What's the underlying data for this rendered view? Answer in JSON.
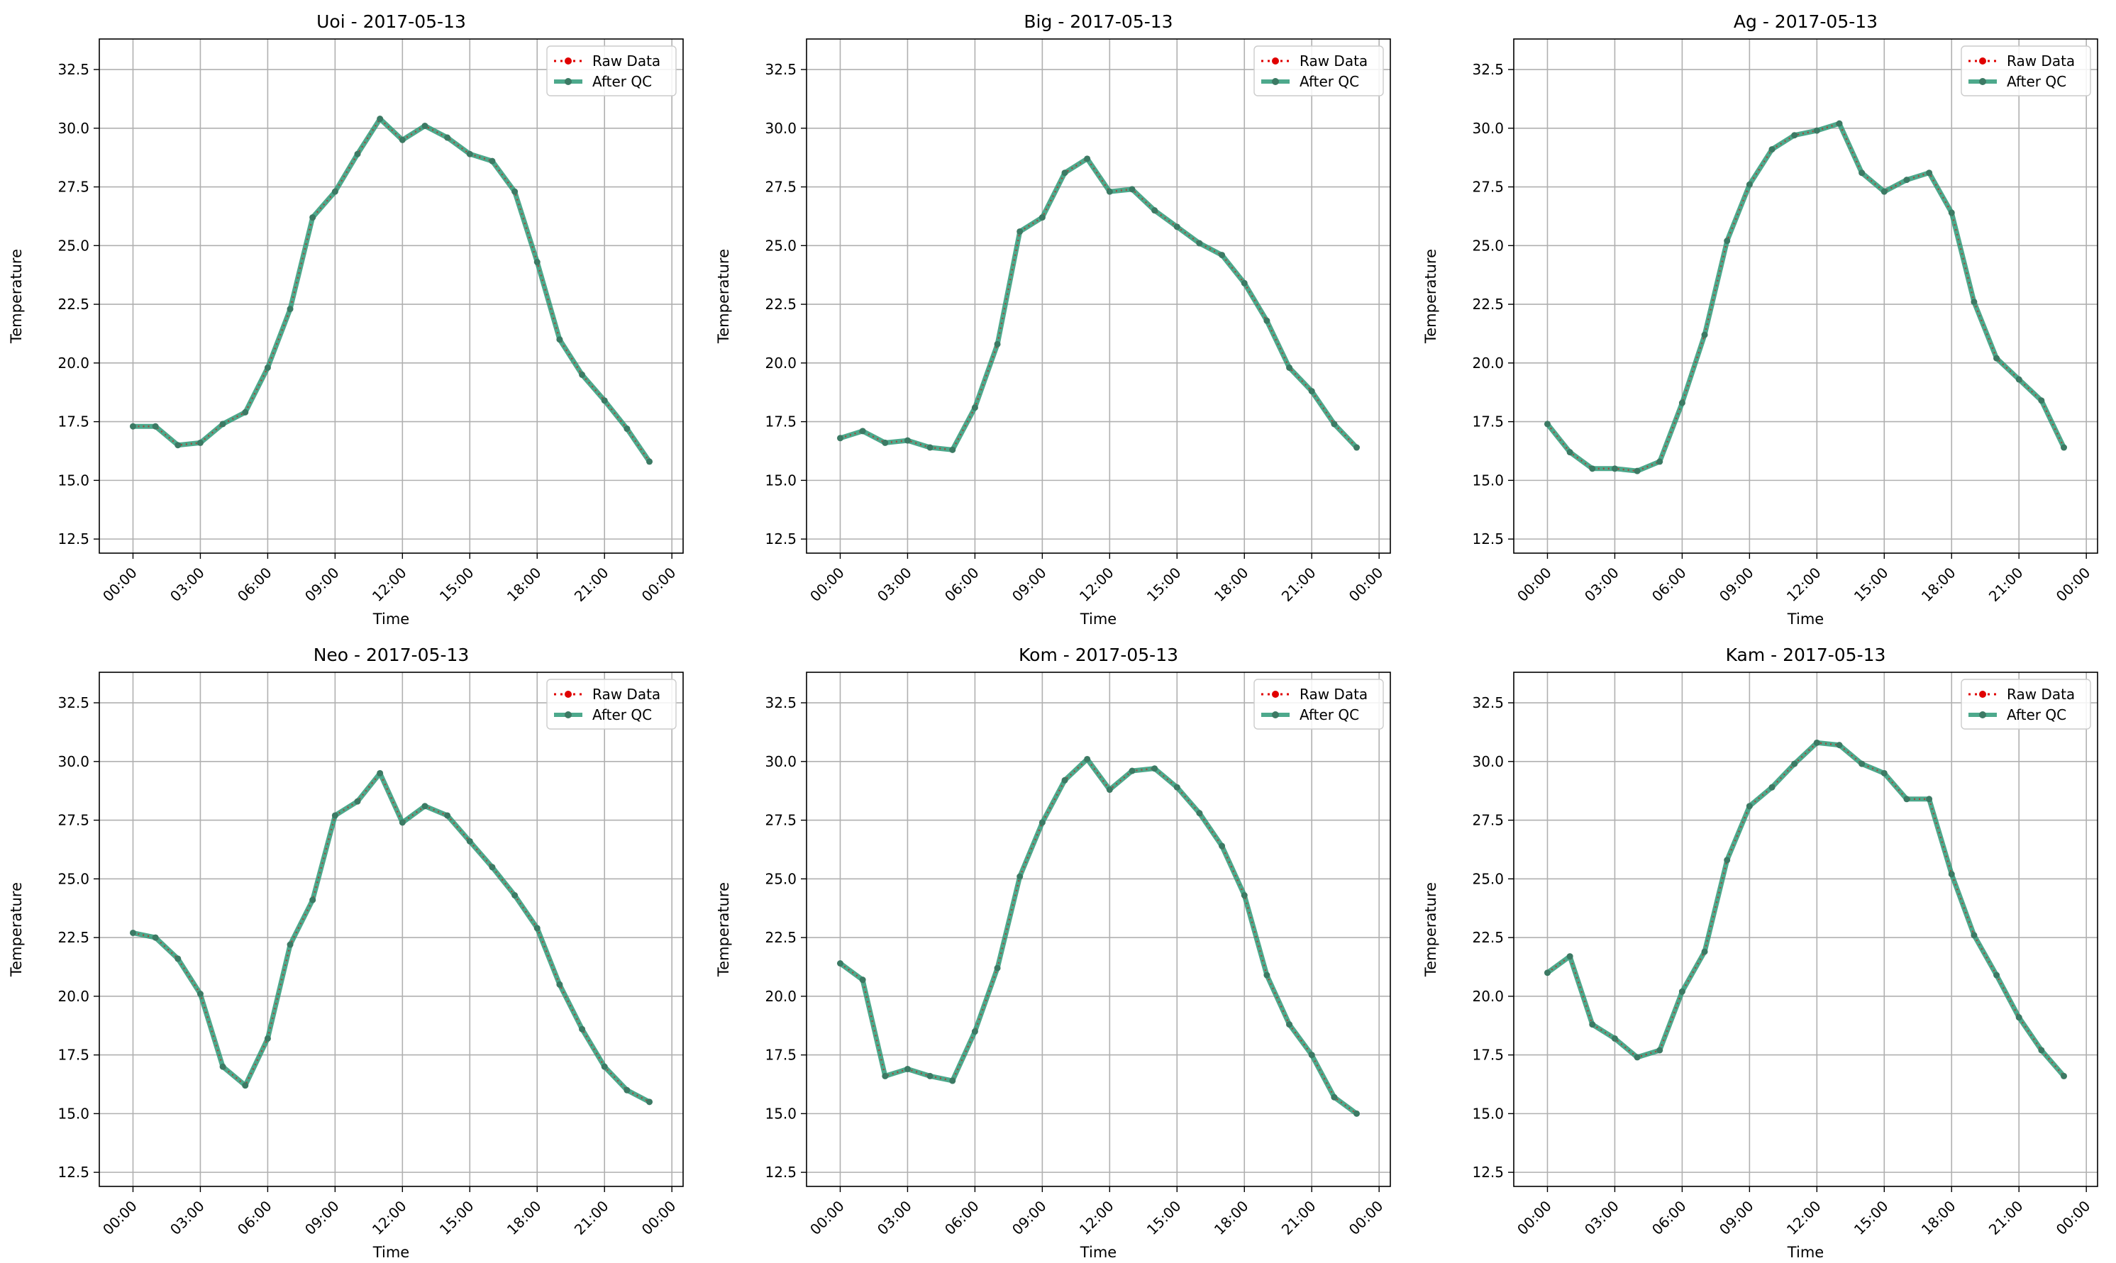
{
  "chart_data": [
    {
      "type": "line",
      "title": "Uoi - 2017-05-13",
      "xlabel": "Time",
      "ylabel": "Temperature",
      "x_hours": [
        0,
        1,
        2,
        3,
        4,
        5,
        6,
        7,
        8,
        9,
        10,
        11,
        12,
        13,
        14,
        15,
        16,
        17,
        18,
        19,
        20,
        21,
        22,
        23
      ],
      "xlim": [
        -1.5,
        24.5
      ],
      "ylim": [
        11.9,
        33.8
      ],
      "yticks": [
        "12.5",
        "15.0",
        "17.5",
        "20.0",
        "22.5",
        "25.0",
        "27.5",
        "30.0",
        "32.5"
      ],
      "xticks": [
        "00:00",
        "03:00",
        "06:00",
        "09:00",
        "12:00",
        "15:00",
        "18:00",
        "21:00",
        "00:00"
      ],
      "grid": true,
      "legend_position": "top-right",
      "series": [
        {
          "name": "Raw Data",
          "color": "#e00000",
          "values": [
            17.3,
            17.3,
            16.5,
            16.6,
            17.4,
            17.9,
            19.8,
            22.3,
            26.2,
            27.3,
            28.9,
            30.4,
            29.5,
            30.1,
            29.6,
            28.9,
            28.6,
            27.3,
            24.3,
            21.0,
            19.5,
            18.4,
            17.2,
            15.8
          ]
        },
        {
          "name": "After QC",
          "color": "#2e9a78",
          "values": [
            17.3,
            17.3,
            16.5,
            16.6,
            17.4,
            17.9,
            19.8,
            22.3,
            26.2,
            27.3,
            28.9,
            30.4,
            29.5,
            30.1,
            29.6,
            28.9,
            28.6,
            27.3,
            24.3,
            21.0,
            19.5,
            18.4,
            17.2,
            15.8
          ]
        }
      ]
    },
    {
      "type": "line",
      "title": "Big - 2017-05-13",
      "xlabel": "Time",
      "ylabel": "Temperature",
      "x_hours": [
        0,
        1,
        2,
        3,
        4,
        5,
        6,
        7,
        8,
        9,
        10,
        11,
        12,
        13,
        14,
        15,
        16,
        17,
        18,
        19,
        20,
        21,
        22,
        23
      ],
      "xlim": [
        -1.5,
        24.5
      ],
      "ylim": [
        11.9,
        33.8
      ],
      "yticks": [
        "12.5",
        "15.0",
        "17.5",
        "20.0",
        "22.5",
        "25.0",
        "27.5",
        "30.0",
        "32.5"
      ],
      "xticks": [
        "00:00",
        "03:00",
        "06:00",
        "09:00",
        "12:00",
        "15:00",
        "18:00",
        "21:00",
        "00:00"
      ],
      "grid": true,
      "legend_position": "top-right",
      "series": [
        {
          "name": "Raw Data",
          "color": "#e00000",
          "values": [
            16.8,
            17.1,
            16.6,
            16.7,
            16.4,
            16.3,
            18.1,
            20.8,
            25.6,
            26.2,
            28.1,
            28.7,
            27.3,
            27.4,
            26.5,
            25.8,
            25.1,
            24.6,
            23.4,
            21.8,
            19.8,
            18.8,
            17.4,
            16.4
          ]
        },
        {
          "name": "After QC",
          "color": "#2e9a78",
          "values": [
            16.8,
            17.1,
            16.6,
            16.7,
            16.4,
            16.3,
            18.1,
            20.8,
            25.6,
            26.2,
            28.1,
            28.7,
            27.3,
            27.4,
            26.5,
            25.8,
            25.1,
            24.6,
            23.4,
            21.8,
            19.8,
            18.8,
            17.4,
            16.4
          ]
        }
      ]
    },
    {
      "type": "line",
      "title": "Ag - 2017-05-13",
      "xlabel": "Time",
      "ylabel": "Temperature",
      "x_hours": [
        0,
        1,
        2,
        3,
        4,
        5,
        6,
        7,
        8,
        9,
        10,
        11,
        12,
        13,
        14,
        15,
        16,
        17,
        18,
        19,
        20,
        21,
        22,
        23
      ],
      "xlim": [
        -1.5,
        24.5
      ],
      "ylim": [
        11.9,
        33.8
      ],
      "yticks": [
        "12.5",
        "15.0",
        "17.5",
        "20.0",
        "22.5",
        "25.0",
        "27.5",
        "30.0",
        "32.5"
      ],
      "xticks": [
        "00:00",
        "03:00",
        "06:00",
        "09:00",
        "12:00",
        "15:00",
        "18:00",
        "21:00",
        "00:00"
      ],
      "grid": true,
      "legend_position": "top-right",
      "series": [
        {
          "name": "Raw Data",
          "color": "#e00000",
          "values": [
            17.4,
            16.2,
            15.5,
            15.5,
            15.4,
            15.8,
            18.3,
            21.2,
            25.2,
            27.6,
            29.1,
            29.7,
            29.9,
            30.2,
            28.1,
            27.3,
            27.8,
            28.1,
            26.4,
            22.6,
            20.2,
            19.3,
            18.4,
            16.4
          ]
        },
        {
          "name": "After QC",
          "color": "#2e9a78",
          "values": [
            17.4,
            16.2,
            15.5,
            15.5,
            15.4,
            15.8,
            18.3,
            21.2,
            25.2,
            27.6,
            29.1,
            29.7,
            29.9,
            30.2,
            28.1,
            27.3,
            27.8,
            28.1,
            26.4,
            22.6,
            20.2,
            19.3,
            18.4,
            16.4
          ]
        }
      ]
    },
    {
      "type": "line",
      "title": "Neo - 2017-05-13",
      "xlabel": "Time",
      "ylabel": "Temperature",
      "x_hours": [
        0,
        1,
        2,
        3,
        4,
        5,
        6,
        7,
        8,
        9,
        10,
        11,
        12,
        13,
        14,
        15,
        16,
        17,
        18,
        19,
        20,
        21,
        22,
        23
      ],
      "xlim": [
        -1.5,
        24.5
      ],
      "ylim": [
        11.9,
        33.8
      ],
      "yticks": [
        "12.5",
        "15.0",
        "17.5",
        "20.0",
        "22.5",
        "25.0",
        "27.5",
        "30.0",
        "32.5"
      ],
      "xticks": [
        "00:00",
        "03:00",
        "06:00",
        "09:00",
        "12:00",
        "15:00",
        "18:00",
        "21:00",
        "00:00"
      ],
      "grid": true,
      "legend_position": "top-right",
      "series": [
        {
          "name": "Raw Data",
          "color": "#e00000",
          "values": [
            22.7,
            22.5,
            21.6,
            20.1,
            17.0,
            16.2,
            18.2,
            22.2,
            24.1,
            27.7,
            28.3,
            29.5,
            27.4,
            28.1,
            27.7,
            26.6,
            25.5,
            24.3,
            22.9,
            20.5,
            18.6,
            17.0,
            16.0,
            15.5
          ]
        },
        {
          "name": "After QC",
          "color": "#2e9a78",
          "values": [
            22.7,
            22.5,
            21.6,
            20.1,
            17.0,
            16.2,
            18.2,
            22.2,
            24.1,
            27.7,
            28.3,
            29.5,
            27.4,
            28.1,
            27.7,
            26.6,
            25.5,
            24.3,
            22.9,
            20.5,
            18.6,
            17.0,
            16.0,
            15.5
          ]
        }
      ]
    },
    {
      "type": "line",
      "title": "Kom - 2017-05-13",
      "xlabel": "Time",
      "ylabel": "Temperature",
      "x_hours": [
        0,
        1,
        2,
        3,
        4,
        5,
        6,
        7,
        8,
        9,
        10,
        11,
        12,
        13,
        14,
        15,
        16,
        17,
        18,
        19,
        20,
        21,
        22,
        23
      ],
      "xlim": [
        -1.5,
        24.5
      ],
      "ylim": [
        11.9,
        33.8
      ],
      "yticks": [
        "12.5",
        "15.0",
        "17.5",
        "20.0",
        "22.5",
        "25.0",
        "27.5",
        "30.0",
        "32.5"
      ],
      "xticks": [
        "00:00",
        "03:00",
        "06:00",
        "09:00",
        "12:00",
        "15:00",
        "18:00",
        "21:00",
        "00:00"
      ],
      "grid": true,
      "legend_position": "top-right",
      "series": [
        {
          "name": "Raw Data",
          "color": "#e00000",
          "values": [
            21.4,
            20.7,
            16.6,
            16.9,
            16.6,
            16.4,
            18.5,
            21.2,
            25.1,
            27.4,
            29.2,
            30.1,
            28.8,
            29.6,
            29.7,
            28.9,
            27.8,
            26.4,
            24.3,
            20.9,
            18.8,
            17.5,
            15.7,
            15.0
          ]
        },
        {
          "name": "After QC",
          "color": "#2e9a78",
          "values": [
            21.4,
            20.7,
            16.6,
            16.9,
            16.6,
            16.4,
            18.5,
            21.2,
            25.1,
            27.4,
            29.2,
            30.1,
            28.8,
            29.6,
            29.7,
            28.9,
            27.8,
            26.4,
            24.3,
            20.9,
            18.8,
            17.5,
            15.7,
            15.0
          ]
        }
      ]
    },
    {
      "type": "line",
      "title": "Kam - 2017-05-13",
      "xlabel": "Time",
      "ylabel": "Temperature",
      "x_hours": [
        0,
        1,
        2,
        3,
        4,
        5,
        6,
        7,
        8,
        9,
        10,
        11,
        12,
        13,
        14,
        15,
        16,
        17,
        18,
        19,
        20,
        21,
        22,
        23
      ],
      "xlim": [
        -1.5,
        24.5
      ],
      "ylim": [
        11.9,
        33.8
      ],
      "yticks": [
        "12.5",
        "15.0",
        "17.5",
        "20.0",
        "22.5",
        "25.0",
        "27.5",
        "30.0",
        "32.5"
      ],
      "xticks": [
        "00:00",
        "03:00",
        "06:00",
        "09:00",
        "12:00",
        "15:00",
        "18:00",
        "21:00",
        "00:00"
      ],
      "grid": true,
      "legend_position": "top-right",
      "series": [
        {
          "name": "Raw Data",
          "color": "#e00000",
          "values": [
            21.0,
            21.7,
            18.8,
            18.2,
            17.4,
            17.7,
            20.2,
            21.9,
            25.8,
            28.1,
            28.9,
            29.9,
            30.8,
            30.7,
            29.9,
            29.5,
            28.4,
            28.4,
            25.2,
            22.6,
            20.9,
            19.1,
            17.7,
            16.6
          ]
        },
        {
          "name": "After QC",
          "color": "#2e9a78",
          "values": [
            21.0,
            21.7,
            18.8,
            18.2,
            17.4,
            17.7,
            20.2,
            21.9,
            25.8,
            28.1,
            28.9,
            29.9,
            30.8,
            30.7,
            29.9,
            29.5,
            28.4,
            28.4,
            25.2,
            22.6,
            20.9,
            19.1,
            17.7,
            16.6
          ]
        }
      ]
    }
  ]
}
